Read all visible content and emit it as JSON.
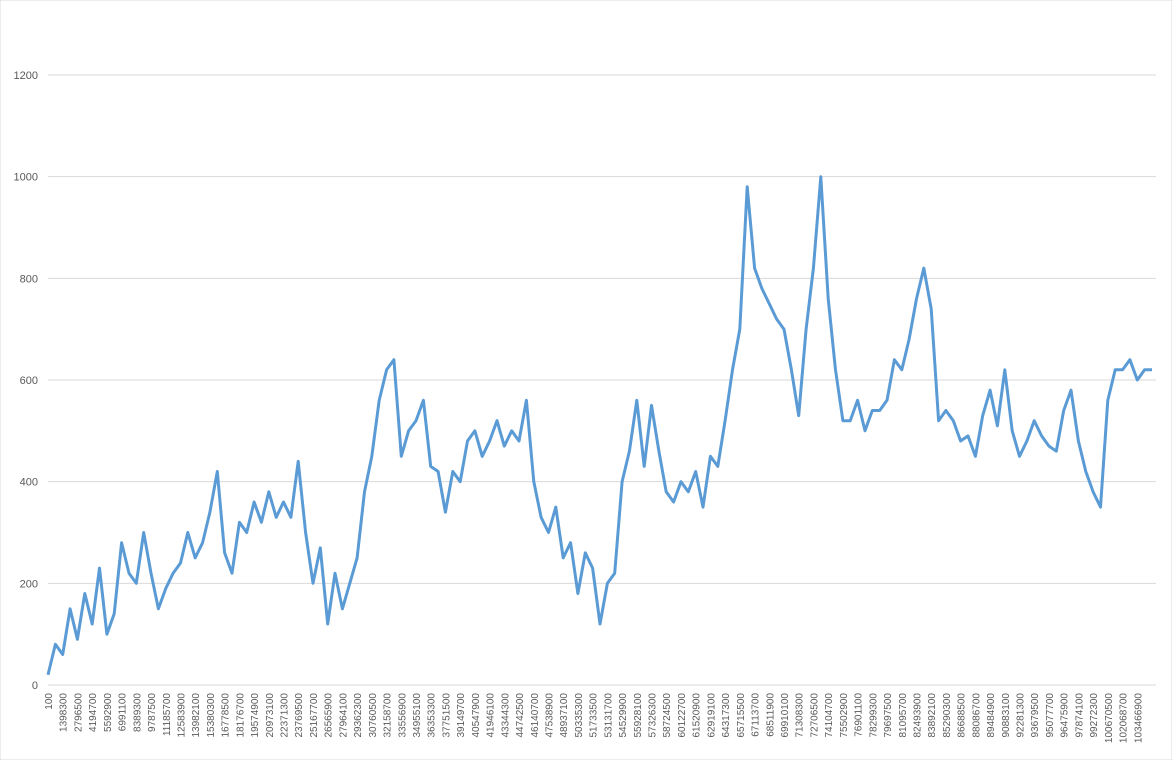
{
  "chart_data": {
    "type": "line",
    "color": "#5b9bd5",
    "grid": true,
    "ylim": [
      0,
      1200
    ],
    "yticks": [
      0,
      200,
      400,
      600,
      800,
      1000,
      1200
    ],
    "categories": [
      "100",
      null,
      "1398300",
      null,
      "2796500",
      null,
      "4194700",
      null,
      "5592900",
      null,
      "6991100",
      null,
      "8389300",
      null,
      "9787500",
      null,
      "11185700",
      null,
      "12583900",
      null,
      "13982100",
      null,
      "15380300",
      null,
      "16778500",
      null,
      "18176700",
      null,
      "19574900",
      null,
      "20973100",
      null,
      "22371300",
      null,
      "23769500",
      null,
      "25167700",
      null,
      "26565900",
      null,
      "27964100",
      null,
      "29362300",
      null,
      "30760500",
      null,
      "32158700",
      null,
      "33556900",
      null,
      "34955100",
      null,
      "36353300",
      null,
      "37751500",
      null,
      "39149700",
      null,
      "40547900",
      null,
      "41946100",
      null,
      "43344300",
      null,
      "44742500",
      null,
      "46140700",
      null,
      "47538900",
      null,
      "48937100",
      null,
      "50335300",
      null,
      "51733500",
      null,
      "53131700",
      null,
      "54529900",
      null,
      "55928100",
      null,
      "57326300",
      null,
      "58724500",
      null,
      "60122700",
      null,
      "61520900",
      null,
      "62919100",
      null,
      "64317300",
      null,
      "65715500",
      null,
      "67113700",
      null,
      "68511900",
      null,
      "69910100",
      null,
      "71308300",
      null,
      "72706500",
      null,
      "74104700",
      null,
      "75502900",
      null,
      "76901100",
      null,
      "78299300",
      null,
      "79697500",
      null,
      "81095700",
      null,
      "82493900",
      null,
      "83892100",
      null,
      "85290300",
      null,
      "86688500",
      null,
      "88086700",
      null,
      "89484900",
      null,
      "90883100",
      null,
      "92281300",
      null,
      "93679500",
      null,
      "95077700",
      null,
      "96475900",
      null,
      "97874100",
      null,
      "99272300",
      null,
      "100670500",
      null,
      "102068700",
      null,
      "103466900",
      null,
      null
    ],
    "values": [
      20,
      80,
      60,
      150,
      90,
      180,
      120,
      230,
      100,
      140,
      280,
      220,
      200,
      300,
      220,
      150,
      190,
      220,
      240,
      300,
      250,
      280,
      340,
      420,
      260,
      220,
      320,
      300,
      360,
      320,
      380,
      330,
      360,
      330,
      440,
      300,
      200,
      270,
      120,
      220,
      150,
      200,
      250,
      380,
      450,
      560,
      620,
      640,
      450,
      500,
      520,
      560,
      430,
      420,
      340,
      420,
      400,
      480,
      500,
      450,
      480,
      520,
      470,
      500,
      480,
      560,
      400,
      330,
      300,
      350,
      250,
      280,
      180,
      260,
      230,
      120,
      200,
      220,
      400,
      460,
      560,
      430,
      550,
      460,
      380,
      360,
      400,
      380,
      420,
      350,
      450,
      430,
      520,
      620,
      700,
      980,
      820,
      780,
      750,
      720,
      700,
      620,
      530,
      700,
      820,
      1000,
      760,
      620,
      520,
      520,
      560,
      500,
      540,
      540,
      560,
      640,
      620,
      680,
      760,
      820,
      740,
      520,
      540,
      520,
      480,
      490,
      450,
      530,
      580,
      510,
      620,
      500,
      450,
      480,
      520,
      490,
      470,
      460,
      540,
      580,
      480,
      420,
      380,
      350,
      560,
      620,
      620,
      640,
      600,
      620,
      620
    ]
  }
}
